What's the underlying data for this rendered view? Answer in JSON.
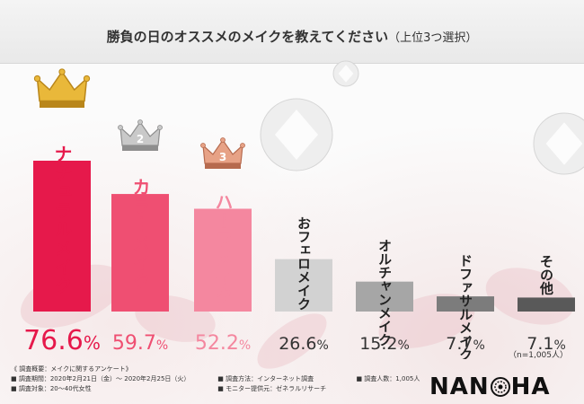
{
  "title": {
    "main": "勝負の日のオススメのメイクを教えてください",
    "sub": "（上位3つ選択）"
  },
  "chart_data": {
    "type": "bar",
    "title": "勝負の日のオススメのメイクを教えてください（上位3つ選択）",
    "categories": [
      "ナチュラルメイク",
      "カラーメイク",
      "ハーフメイク",
      "おフェロメイク",
      "オルチャンメイク",
      "ドファサルメイク",
      "その他"
    ],
    "values": [
      76.6,
      59.7,
      52.2,
      26.6,
      15.2,
      7.7,
      7.1
    ],
    "value_labels": [
      {
        "num": "76.6",
        "unit": "%"
      },
      {
        "num": "59.7",
        "unit": "%"
      },
      {
        "num": "52.2",
        "unit": "%"
      },
      {
        "num": "26.6",
        "unit": "%"
      },
      {
        "num": "15.2",
        "unit": "%"
      },
      {
        "num": "7.7",
        "unit": "%"
      },
      {
        "num": "7.1",
        "unit": "%"
      }
    ],
    "ylim": [
      0,
      100
    ],
    "xlabel": "",
    "ylabel": "",
    "colors": [
      "#e6194b",
      "#ef4f72",
      "#f4879f",
      "#d2d2d2",
      "#a6a6a6",
      "#7c7c7c",
      "#595959"
    ],
    "label_colors": [
      "#e6194b",
      "#ef4f72",
      "#f4879f",
      "#333333",
      "#333333",
      "#333333",
      "#333333"
    ],
    "rank_badges": [
      "",
      "2",
      "3"
    ],
    "grid": false,
    "legend": "none"
  },
  "n_note": "（n=1,005人）",
  "survey": {
    "heading": "《 調査概要：メイクに関するアンケート》",
    "period": "■ 調査期間：2020年2月21日（金）～ 2020年2月25日（火）",
    "method": "■ 調査方法：インターネット調査",
    "count": "■ 調査人数：1,005人",
    "target": "■ 調査対象：20～40代女性",
    "provider": "■ モニター提供元：ゼネラルリサーチ"
  },
  "logo": {
    "left": "NAN",
    "right": "HA"
  }
}
